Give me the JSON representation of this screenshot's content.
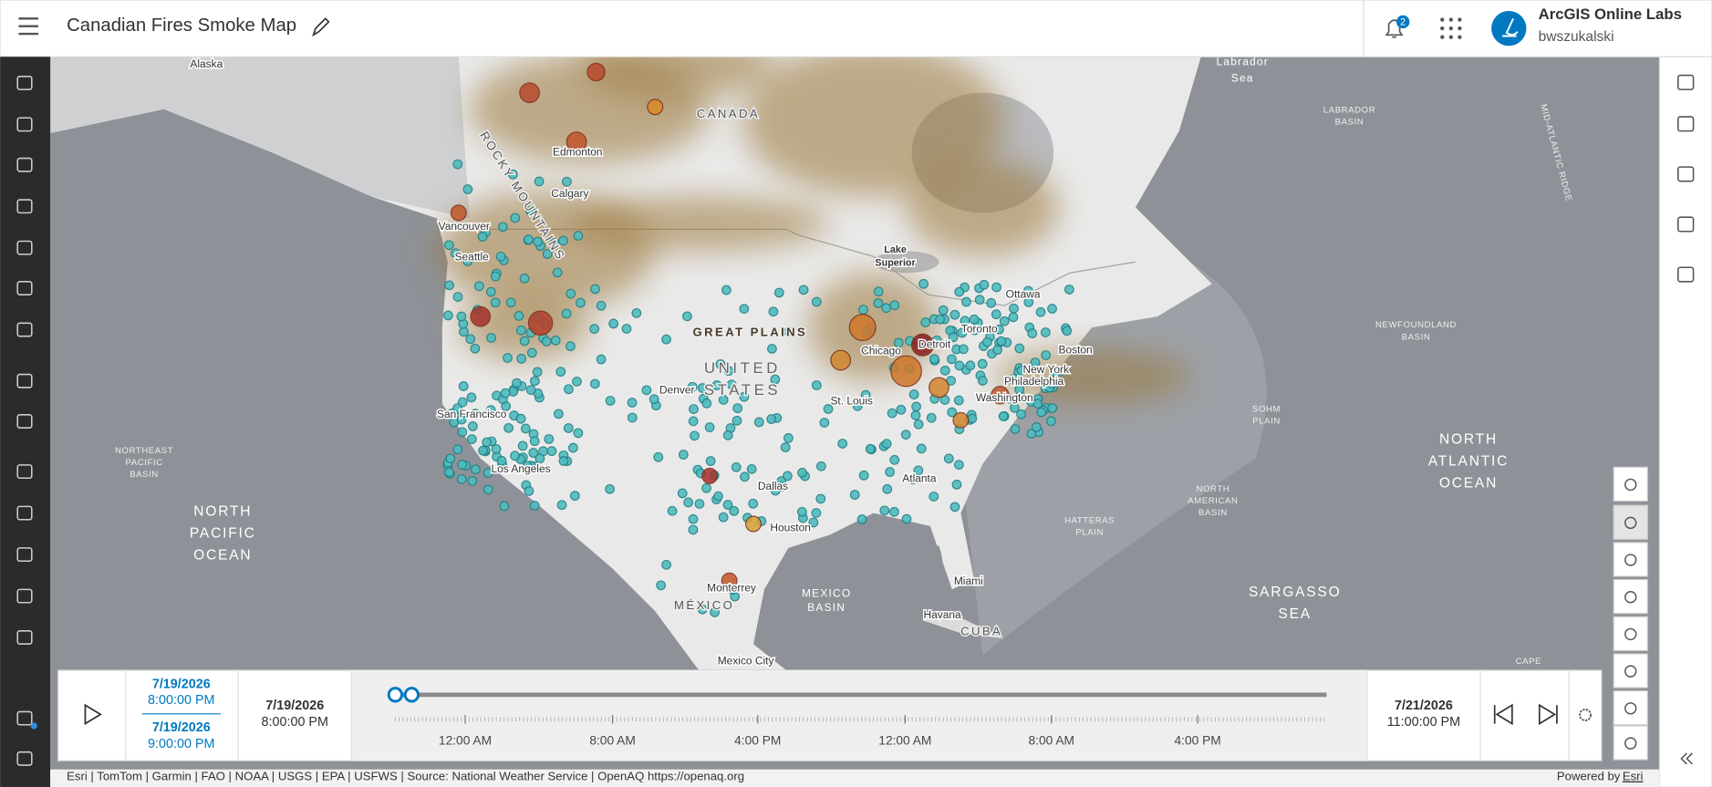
{
  "header": {
    "title": "Canadian Fires Smoke Map",
    "notification_count": "2",
    "org": "ArcGIS Online Labs",
    "user": "bwszukalski"
  },
  "map": {
    "labels": [
      [
        "Alaska"
      ],
      [
        "CANADA"
      ],
      [
        "Edmonton"
      ],
      [
        "Calgary"
      ],
      [
        "Vancouver"
      ],
      [
        "Seattle"
      ],
      [
        "ROCKY MOUNTAINS"
      ],
      [
        "GREAT PLAINS"
      ],
      [
        "UNITED",
        "STATES"
      ],
      [
        "Denver"
      ],
      [
        "San Francisco"
      ],
      [
        "Los Angeles"
      ],
      [
        "Dallas"
      ],
      [
        "Houston"
      ],
      [
        "Lake",
        "Superior"
      ],
      [
        "Chicago"
      ],
      [
        "Detroit"
      ],
      [
        "Toronto"
      ],
      [
        "Ottawa"
      ],
      [
        "Boston"
      ],
      [
        "New York"
      ],
      [
        "Philadelphia"
      ],
      [
        "Washington"
      ],
      [
        "St. Louis"
      ],
      [
        "Atlanta"
      ],
      [
        "Miami"
      ],
      [
        "Monterrey"
      ],
      [
        "MÉXICO"
      ],
      [
        "Mexico City"
      ],
      [
        "Havana"
      ],
      [
        "CUBA"
      ],
      [
        "Labrador",
        "Sea"
      ],
      [
        "LABRADOR",
        "BASIN"
      ],
      [
        "MID-ATLANTIC RIDGE"
      ],
      [
        "NEWFOUNDLAND",
        "BASIN"
      ],
      [
        "SOHM",
        "PLAIN"
      ],
      [
        "NORTH",
        "ATLANTIC",
        "OCEAN"
      ],
      [
        "NORTH",
        "AMERICAN",
        "BASIN"
      ],
      [
        "HATTERAS",
        "PLAIN"
      ],
      [
        "MEXICO",
        "BASIN"
      ],
      [
        "SARGASSO",
        "SEA"
      ],
      [
        "NORTHEAST",
        "PACIFIC",
        "BASIN"
      ],
      [
        "NORTH",
        "PACIFIC",
        "OCEAN"
      ],
      [
        "CAPE"
      ]
    ]
  },
  "time_slider": {
    "range_start": {
      "date": "7/19/2026",
      "time": "8:00:00 PM"
    },
    "range_end": {
      "date": "7/19/2026",
      "time": "9:00:00 PM"
    },
    "full_start": {
      "date": "7/19/2026",
      "time": "8:00:00 PM"
    },
    "full_end": {
      "date": "7/21/2026",
      "time": "11:00:00 PM"
    },
    "tick_labels": [
      "12:00 AM",
      "8:00 AM",
      "4:00 PM",
      "12:00 AM",
      "8:00 AM",
      "4:00 PM"
    ]
  },
  "attribution": {
    "sources": "Esri | TomTom | Garmin | FAO | NOAA | USGS | EPA | USFWS | Source: National Weather Service | OpenAQ https://openaq.org",
    "powered_by": "Powered by",
    "powered_link": "Esri"
  }
}
